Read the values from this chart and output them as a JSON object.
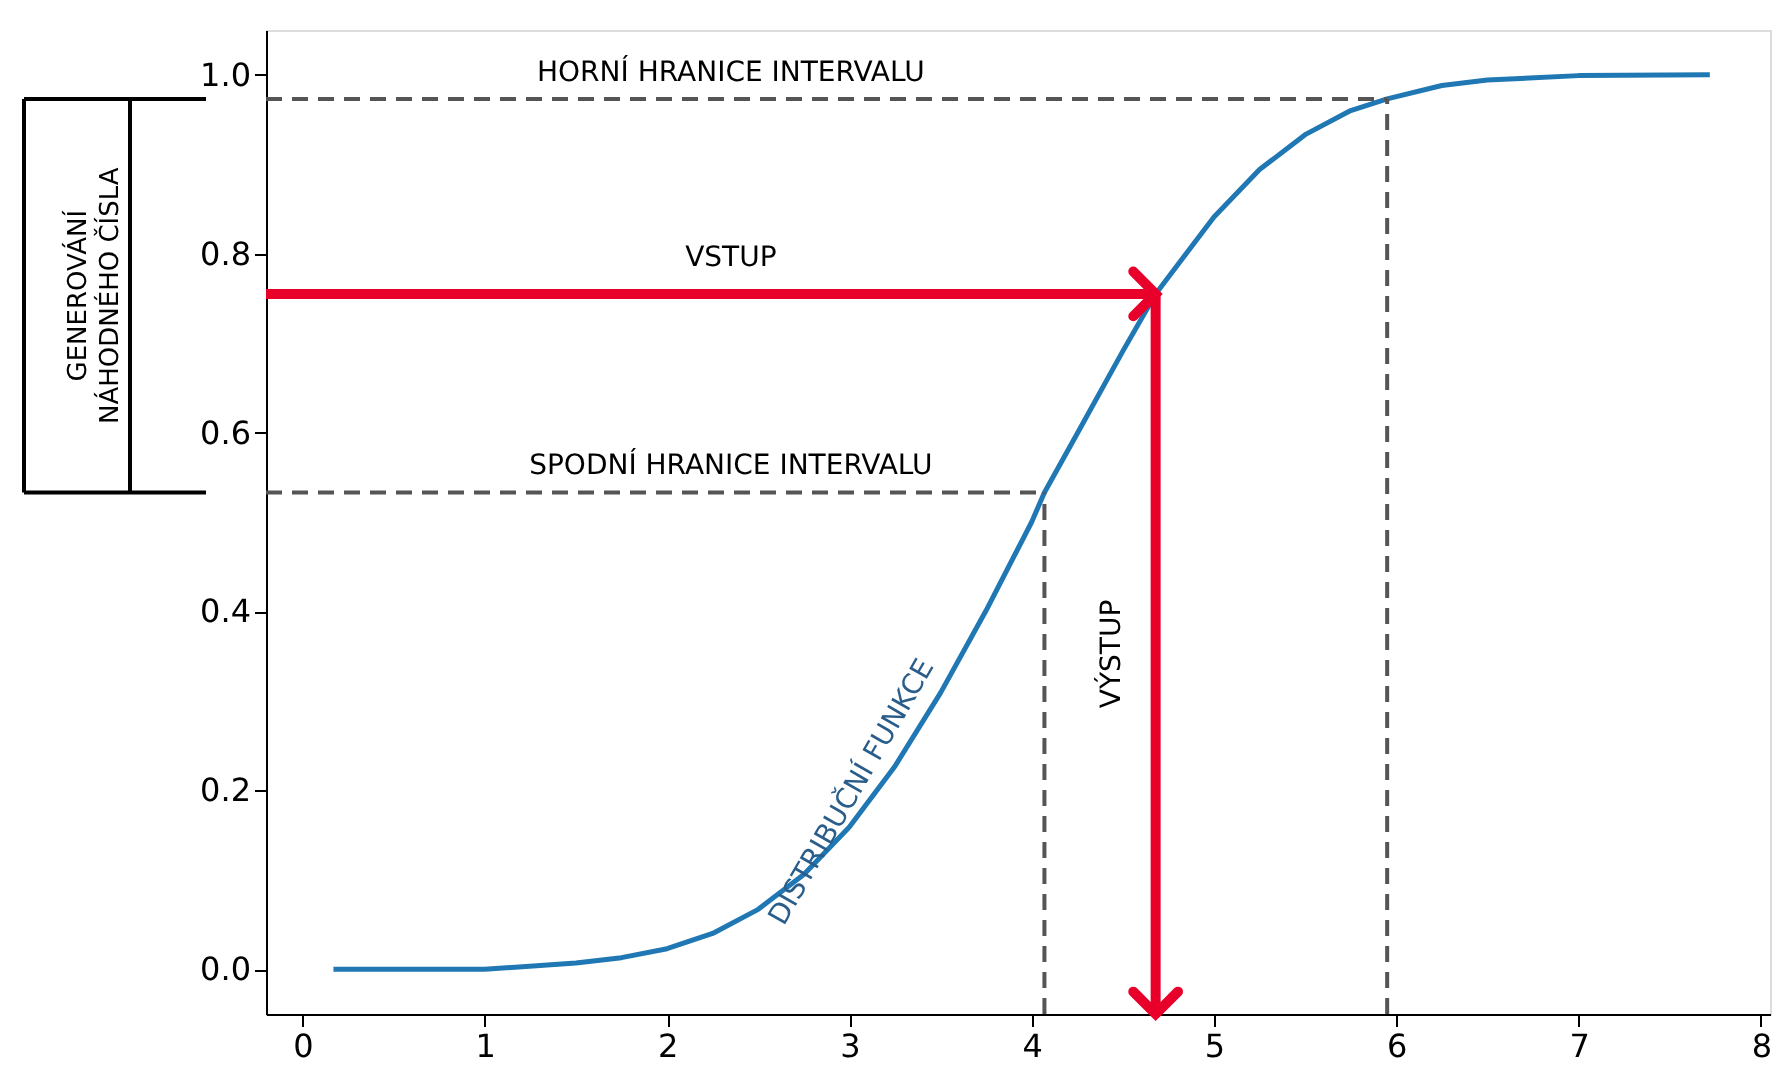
{
  "chart_data": {
    "type": "line",
    "ylabel": "GENEROVÁNÍ NÁHODNÉHO ČÍSLA",
    "x": [
      0.17,
      1.0,
      1.5,
      1.75,
      2.0,
      2.25,
      2.5,
      2.75,
      3.0,
      3.25,
      3.5,
      3.75,
      4.0,
      4.07,
      4.25,
      4.5,
      4.68,
      5.0,
      5.25,
      5.5,
      5.75,
      5.95,
      6.25,
      6.5,
      7.0,
      7.72
    ],
    "series": [
      {
        "name": "DISTRIBUČNÍ FUNKCE",
        "color": "#1f77b4",
        "values": [
          0.0,
          0.0,
          0.007,
          0.013,
          0.023,
          0.04,
          0.067,
          0.106,
          0.159,
          0.227,
          0.309,
          0.401,
          0.5,
          0.533,
          0.599,
          0.691,
          0.755,
          0.841,
          0.894,
          0.933,
          0.96,
          0.973,
          0.988,
          0.994,
          0.999,
          1.0
        ]
      }
    ],
    "xlim": [
      -0.2,
      8.05
    ],
    "ylim": [
      -0.05,
      1.05
    ],
    "xticks": [
      0,
      1,
      2,
      3,
      4,
      5,
      6,
      7,
      8
    ],
    "yticks": [
      {
        "value": 0,
        "label": "0.0"
      },
      {
        "value": 0.2,
        "label": "0.2"
      },
      {
        "value": 0.4,
        "label": "0.4"
      },
      {
        "value": 0.6,
        "label": "0.6"
      },
      {
        "value": 0.8,
        "label": "0.8"
      },
      {
        "value": 1.0,
        "label": "1.0"
      }
    ],
    "grid": false,
    "marker": "none",
    "line_style": "solid",
    "ref_lines": [
      {
        "axis": "y",
        "value": 0.973,
        "label": "HORNÍ HRANICE INTERVALU",
        "color": "#555555",
        "line_style": "dashed"
      },
      {
        "axis": "x",
        "value": 5.95,
        "color": "#555555",
        "line_style": "dashed"
      },
      {
        "axis": "y",
        "value": 0.755,
        "label": "VSTUP",
        "color": "#e8002a",
        "line_style": "solid"
      },
      {
        "axis": "x",
        "value": 4.68,
        "label": "VÝSTUP",
        "color": "#e8002a",
        "line_style": "solid"
      },
      {
        "axis": "y",
        "value": 0.533,
        "label": "SPODNÍ HRANICE INTERVALU",
        "color": "#555555",
        "line_style": "dashed"
      },
      {
        "axis": "x",
        "value": 4.07,
        "color": "#555555",
        "line_style": "dashed"
      }
    ]
  }
}
